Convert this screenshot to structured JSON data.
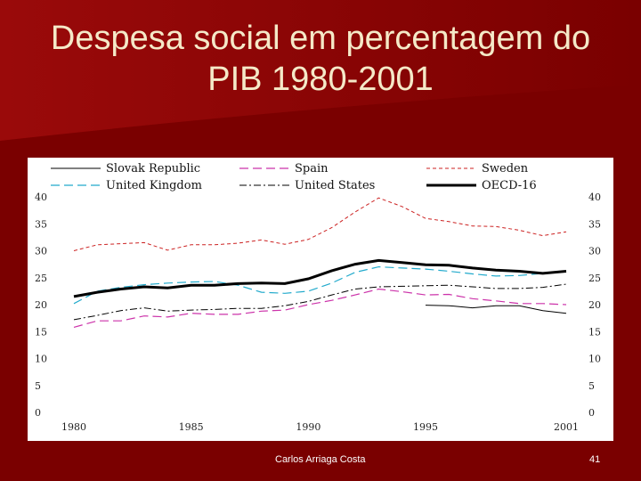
{
  "slide": {
    "title_line1": "Despesa social em percentagem do",
    "title_line2": "PIB 1980-2001",
    "author": "Carlos Arriaga Costa",
    "page": "41"
  },
  "colors": {
    "background": "#7a0000",
    "title": "#f5e9c8"
  },
  "chart_data": {
    "type": "line",
    "title": "",
    "xlabel": "",
    "ylabel": "",
    "xlim": [
      1980,
      2001
    ],
    "ylim": [
      0,
      40
    ],
    "yticks": [
      0,
      5,
      10,
      15,
      20,
      25,
      30,
      35,
      40
    ],
    "xticks": [
      1980,
      1985,
      1990,
      1995,
      2001
    ],
    "grid": false,
    "legend": "top",
    "series": [
      {
        "name": "Slovak Republic",
        "color": "#000000",
        "dash": "",
        "width": 1,
        "x": [
          1995,
          1996,
          1997,
          1998,
          1999,
          2000,
          2001
        ],
        "y": [
          19.9,
          19.8,
          19.4,
          19.8,
          19.8,
          18.9,
          18.4
        ]
      },
      {
        "name": "Spain",
        "color": "#cc33aa",
        "dash": "10,5",
        "width": 1.2,
        "x": [
          1980,
          1981,
          1982,
          1983,
          1984,
          1985,
          1986,
          1987,
          1988,
          1989,
          1990,
          1991,
          1992,
          1993,
          1994,
          1995,
          1996,
          1997,
          1998,
          1999,
          2000,
          2001
        ],
        "y": [
          15.8,
          17.0,
          17.0,
          17.9,
          17.7,
          18.4,
          18.2,
          18.2,
          18.8,
          19.0,
          20.0,
          20.8,
          21.8,
          22.9,
          22.4,
          21.8,
          21.9,
          21.1,
          20.7,
          20.2,
          20.2,
          20.0
        ]
      },
      {
        "name": "Sweden",
        "color": "#cc2222",
        "dash": "4,3",
        "width": 1,
        "x": [
          1980,
          1981,
          1982,
          1983,
          1984,
          1985,
          1986,
          1987,
          1988,
          1989,
          1990,
          1991,
          1992,
          1993,
          1994,
          1995,
          1996,
          1997,
          1998,
          1999,
          2000,
          2001
        ],
        "y": [
          30.0,
          31.1,
          31.3,
          31.5,
          30.1,
          31.1,
          31.1,
          31.4,
          32.0,
          31.2,
          32.1,
          34.3,
          37.2,
          39.8,
          38.2,
          36.0,
          35.4,
          34.6,
          34.5,
          33.8,
          32.8,
          33.5
        ]
      },
      {
        "name": "United Kingdom",
        "color": "#22aacc",
        "dash": "10,5",
        "width": 1.2,
        "x": [
          1980,
          1981,
          1982,
          1983,
          1984,
          1985,
          1986,
          1987,
          1988,
          1989,
          1990,
          1991,
          1992,
          1993,
          1994,
          1995,
          1996,
          1997,
          1998,
          1999,
          2000,
          2001
        ],
        "y": [
          20.2,
          22.5,
          23.2,
          23.7,
          24.0,
          24.2,
          24.3,
          23.6,
          22.3,
          22.1,
          22.5,
          24.0,
          26.0,
          27.0,
          26.8,
          26.6,
          26.2,
          25.7,
          25.3,
          25.4,
          25.8,
          26.2
        ]
      },
      {
        "name": "United States",
        "color": "#000000",
        "dash": "8,3,2,3",
        "width": 1,
        "x": [
          1980,
          1981,
          1982,
          1983,
          1984,
          1985,
          1986,
          1987,
          1988,
          1989,
          1990,
          1991,
          1992,
          1993,
          1994,
          1995,
          1996,
          1997,
          1998,
          1999,
          2000,
          2001
        ],
        "y": [
          17.2,
          18.0,
          18.9,
          19.4,
          18.8,
          19.0,
          19.1,
          19.3,
          19.3,
          19.8,
          20.6,
          21.8,
          22.9,
          23.3,
          23.4,
          23.5,
          23.6,
          23.3,
          23.0,
          23.0,
          23.2,
          23.8
        ]
      },
      {
        "name": "OECD-16",
        "color": "#000000",
        "dash": "",
        "width": 3,
        "x": [
          1980,
          1981,
          1982,
          1983,
          1984,
          1985,
          1986,
          1987,
          1988,
          1989,
          1990,
          1991,
          1992,
          1993,
          1994,
          1995,
          1996,
          1997,
          1998,
          1999,
          2000,
          2001
        ],
        "y": [
          21.5,
          22.3,
          22.9,
          23.3,
          23.1,
          23.6,
          23.6,
          23.9,
          24.0,
          23.9,
          24.8,
          26.3,
          27.5,
          28.2,
          27.8,
          27.4,
          27.3,
          26.8,
          26.4,
          26.2,
          25.8,
          26.2
        ]
      }
    ]
  }
}
